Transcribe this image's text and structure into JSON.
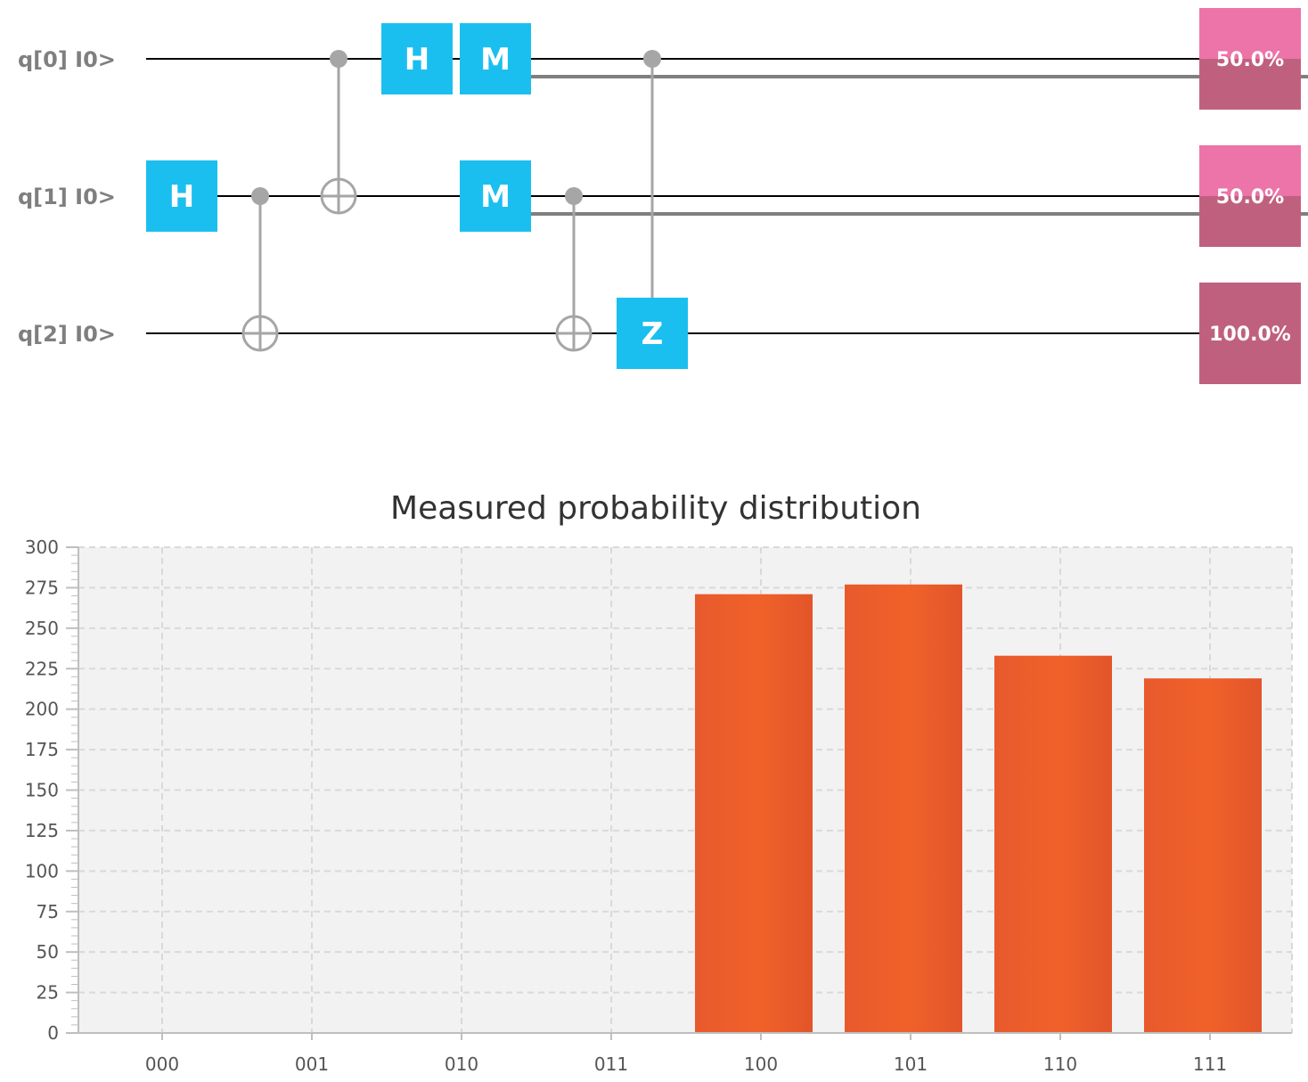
{
  "circuit": {
    "qubits": [
      {
        "label": "q[0] I0>",
        "probability": "50.0%",
        "prob_fraction": 0.5
      },
      {
        "label": "q[1] I0>",
        "probability": "50.0%",
        "prob_fraction": 0.5
      },
      {
        "label": "q[2] I0>",
        "probability": "100.0%",
        "prob_fraction": 1.0
      }
    ],
    "gates": [
      {
        "type": "H",
        "qubit": 1,
        "step": 0
      },
      {
        "type": "CNOT",
        "control": 1,
        "target": 2,
        "step": 1
      },
      {
        "type": "CNOT",
        "control": 0,
        "target": 1,
        "step": 2
      },
      {
        "type": "H",
        "qubit": 0,
        "step": 3
      },
      {
        "type": "M",
        "qubit": 0,
        "step": 4
      },
      {
        "type": "M",
        "qubit": 1,
        "step": 4
      },
      {
        "type": "CNOT",
        "control": 1,
        "target": 2,
        "step": 5
      },
      {
        "type": "CZ",
        "control": 0,
        "target": 2,
        "step": 6
      }
    ],
    "colors": {
      "gate": "#1bbfef",
      "wire": "#000000",
      "control": "#a6a6a6",
      "classical": "#7f7f7f",
      "prob_top": "#ec74a8",
      "prob_bottom": "#c0607f"
    }
  },
  "chart_data": {
    "type": "bar",
    "title": "Measured probability distribution",
    "categories": [
      "000",
      "001",
      "010",
      "011",
      "100",
      "101",
      "110",
      "111"
    ],
    "values": [
      0,
      0,
      0,
      0,
      271,
      277,
      233,
      219
    ],
    "ylim": [
      0,
      300
    ],
    "yticks": [
      0,
      25,
      50,
      75,
      100,
      125,
      150,
      175,
      200,
      225,
      250,
      275,
      300
    ],
    "grid": true,
    "xlabel": "",
    "ylabel": "",
    "colors": {
      "bar": "#f0612a",
      "plot_bg": "#f2f2f2",
      "grid": "#d9d9d9",
      "axis": "#bfbfbf"
    }
  }
}
